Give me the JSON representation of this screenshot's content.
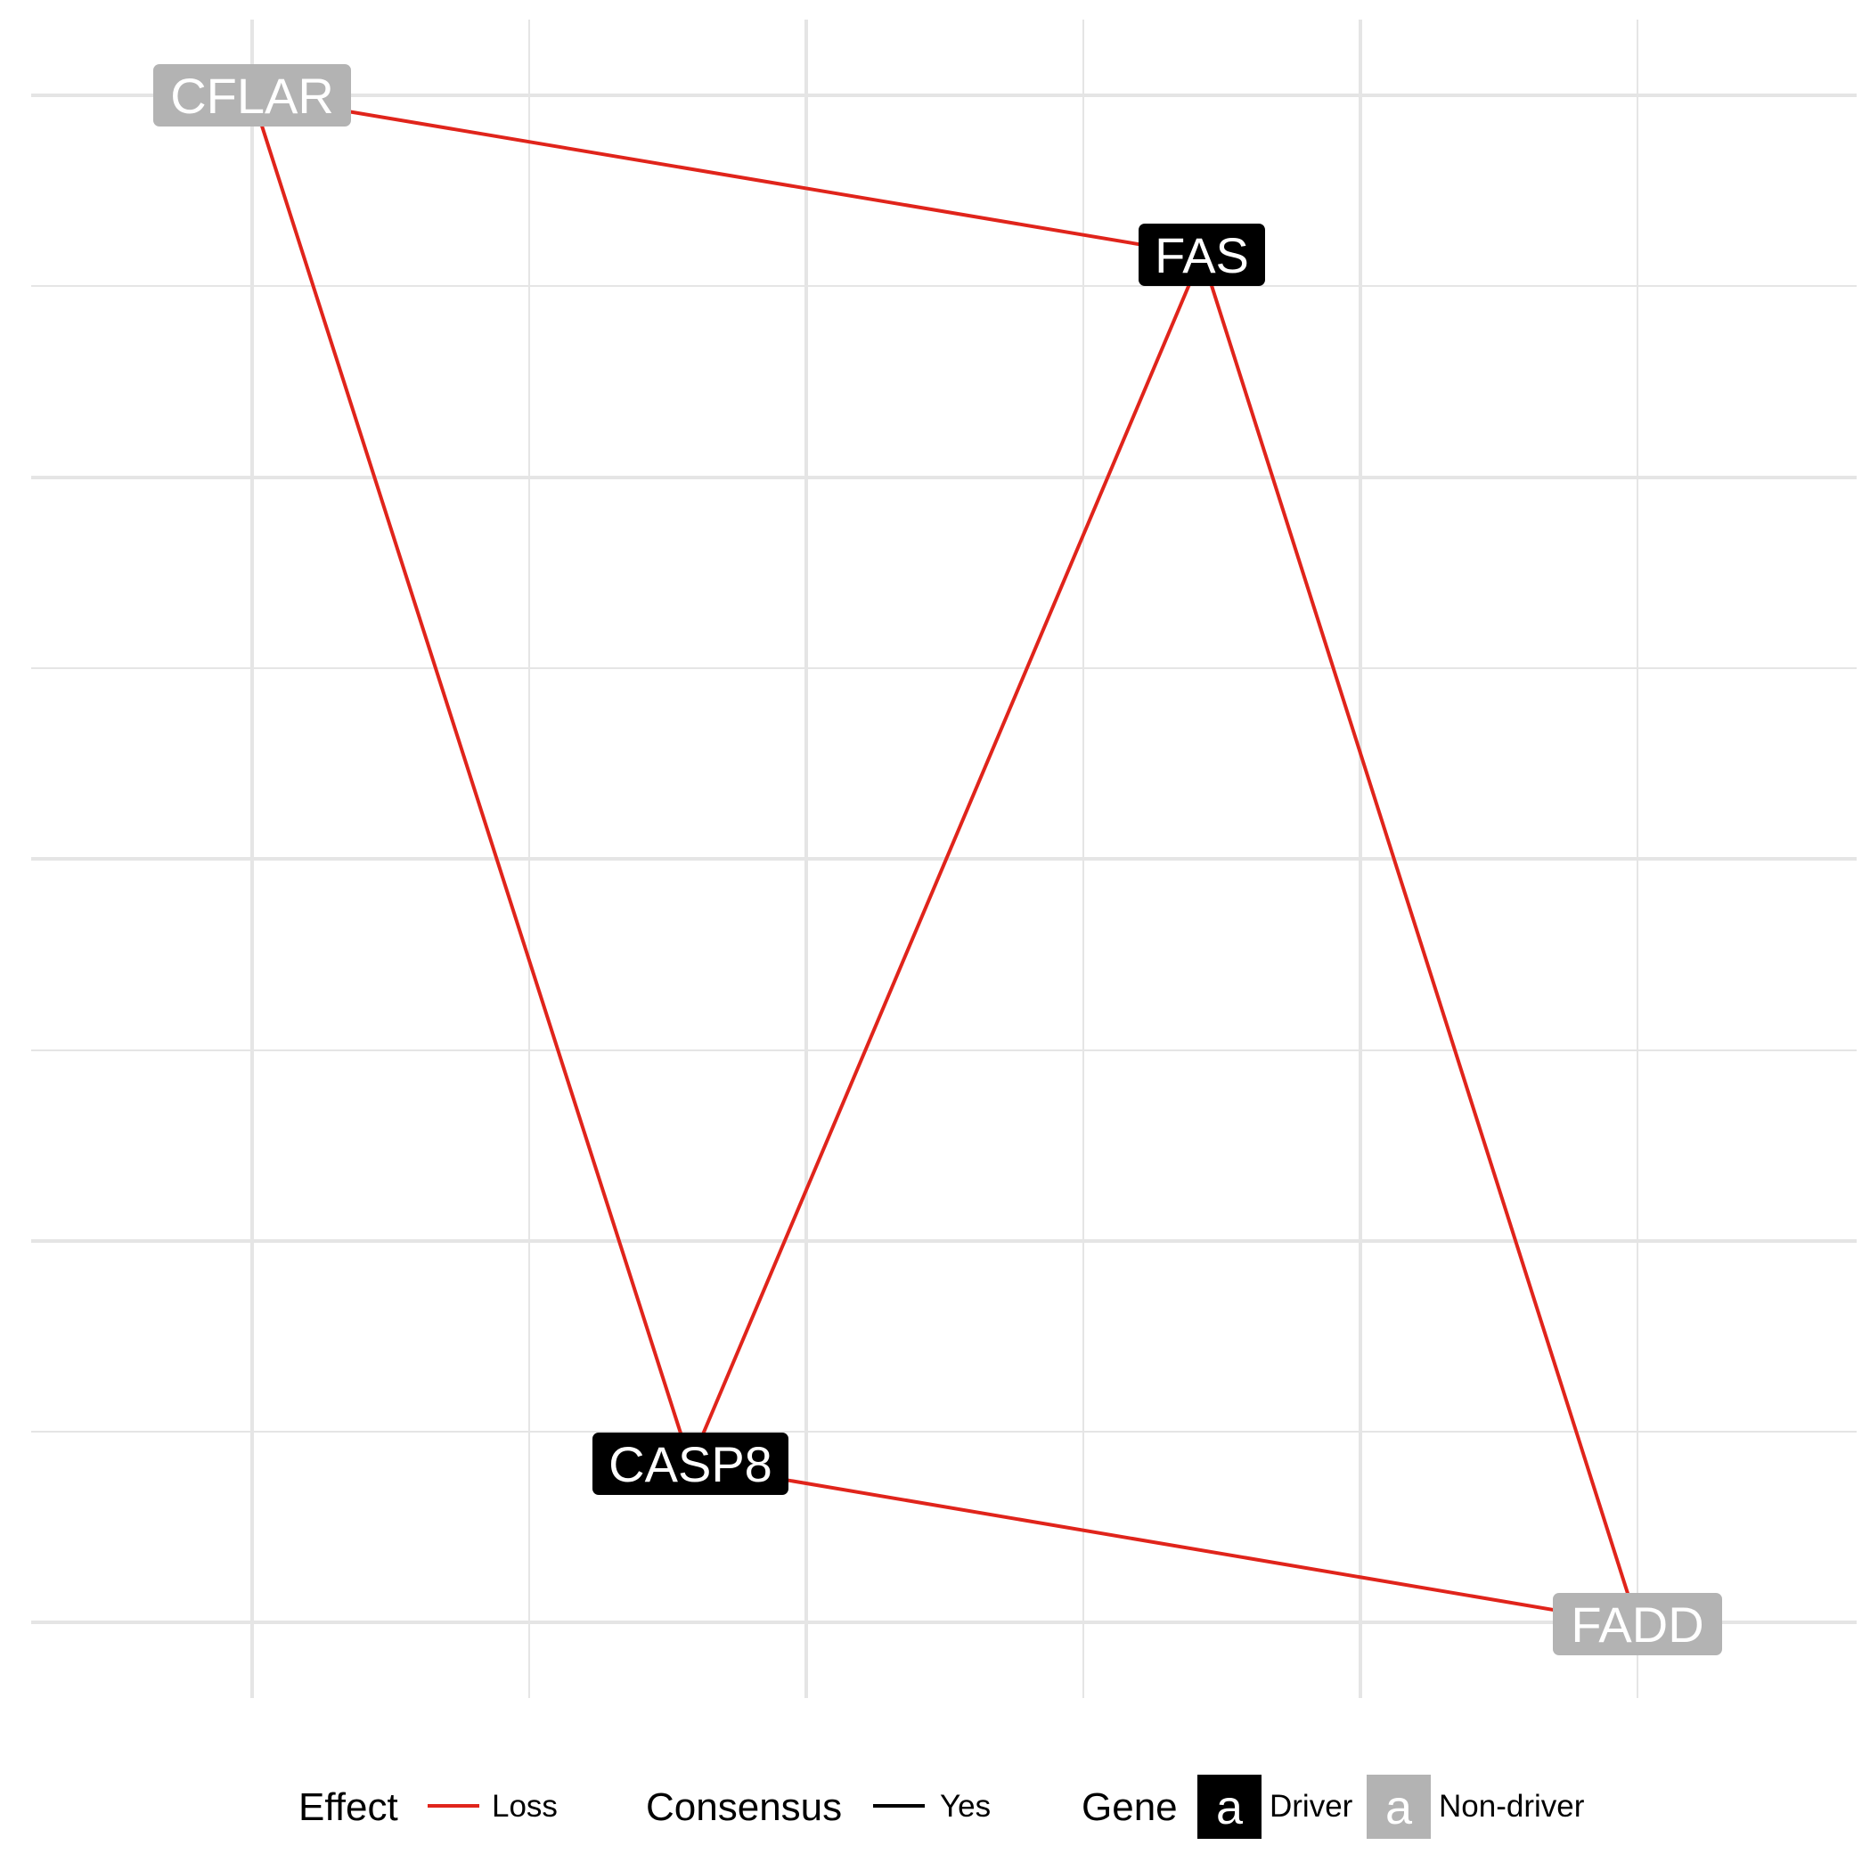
{
  "colors": {
    "background": "#ffffff",
    "grid": "#e5e5e5",
    "edge_loss": "#e0241b",
    "edge_consensus": "#000000",
    "driver_fill": "#000000",
    "non_driver_fill": "#b3b3b3",
    "label_text": "#ffffff"
  },
  "nodes": [
    {
      "id": "CFLAR",
      "label": "CFLAR",
      "type": "non_driver"
    },
    {
      "id": "FAS",
      "label": "FAS",
      "type": "driver"
    },
    {
      "id": "CASP8",
      "label": "CASP8",
      "type": "driver"
    },
    {
      "id": "FADD",
      "label": "FADD",
      "type": "non_driver"
    }
  ],
  "edges": [
    {
      "from": "CFLAR",
      "to": "FAS",
      "effect": "loss"
    },
    {
      "from": "CFLAR",
      "to": "CASP8",
      "effect": "loss"
    },
    {
      "from": "FAS",
      "to": "CASP8",
      "effect": "loss"
    },
    {
      "from": "FAS",
      "to": "FADD",
      "effect": "loss"
    },
    {
      "from": "CASP8",
      "to": "FADD",
      "effect": "loss"
    }
  ],
  "legend": {
    "effect": {
      "title": "Effect",
      "items": [
        {
          "label": "Loss",
          "color": "#e0241b"
        }
      ]
    },
    "consensus": {
      "title": "Consensus",
      "items": [
        {
          "label": "Yes",
          "color": "#000000"
        }
      ]
    },
    "gene": {
      "title": "Gene",
      "key_letter": "a",
      "items": [
        {
          "label": "Driver",
          "type": "driver"
        },
        {
          "label": "Non-driver",
          "type": "non_driver"
        }
      ]
    }
  }
}
